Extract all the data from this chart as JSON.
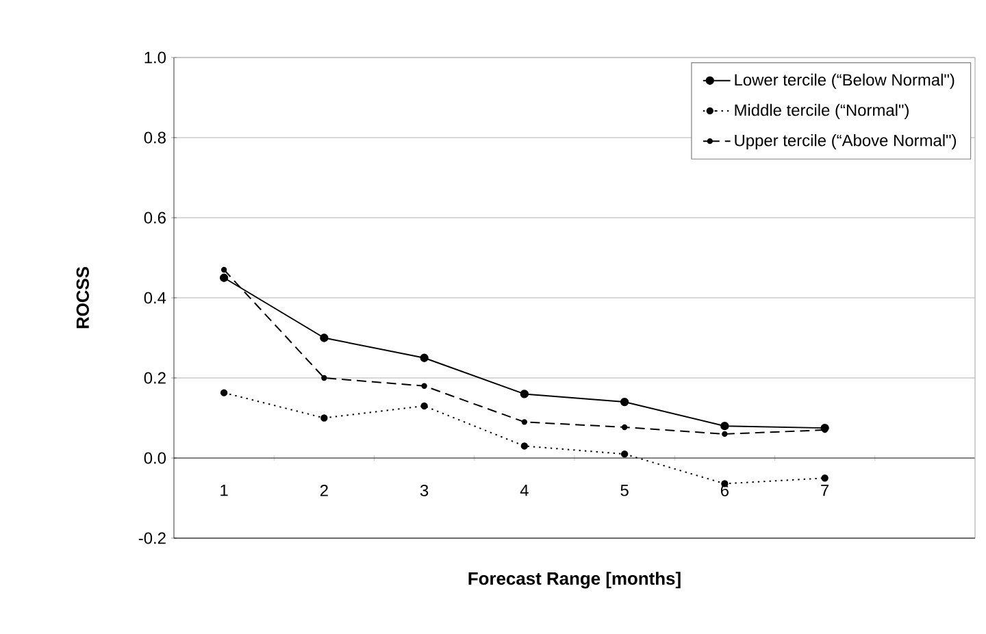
{
  "chart_data": {
    "type": "line",
    "xlabel": "Forecast Range [months]",
    "ylabel": "ROCSS",
    "categories": [
      "1",
      "2",
      "3",
      "4",
      "5",
      "6",
      "7",
      null
    ],
    "series": [
      {
        "name": "Lower tercile (“Below Normal\")",
        "color": "#000000",
        "line_style": "solid",
        "values": [
          0.45,
          0.3,
          0.25,
          0.16,
          0.14,
          0.08,
          0.075,
          null
        ]
      },
      {
        "name": "Middle tercile (“Normal\")",
        "color": "#000000",
        "line_style": "dotted",
        "values": [
          0.163,
          0.1,
          0.13,
          0.03,
          0.01,
          -0.064,
          -0.05,
          null
        ]
      },
      {
        "name": "Upper tercile (“Above Normal\")",
        "color": "#000000",
        "line_style": "dashed",
        "values": [
          0.47,
          0.2,
          0.18,
          0.09,
          0.077,
          0.06,
          0.07,
          null
        ]
      }
    ],
    "ylim": [
      -0.2,
      1.0
    ],
    "yticks": [
      {
        "value": -0.2,
        "label": "-0.2"
      },
      {
        "value": 0,
        "label": "0.0"
      },
      {
        "value": 0.2,
        "label": "0.2"
      },
      {
        "value": 0.4,
        "label": "0.4"
      },
      {
        "value": 0.6,
        "label": "0.6"
      },
      {
        "value": 0.8,
        "label": "0.8"
      },
      {
        "value": 1.0,
        "label": "1.0"
      }
    ],
    "grid": "y",
    "legend": "top right",
    "marker": "circle"
  }
}
